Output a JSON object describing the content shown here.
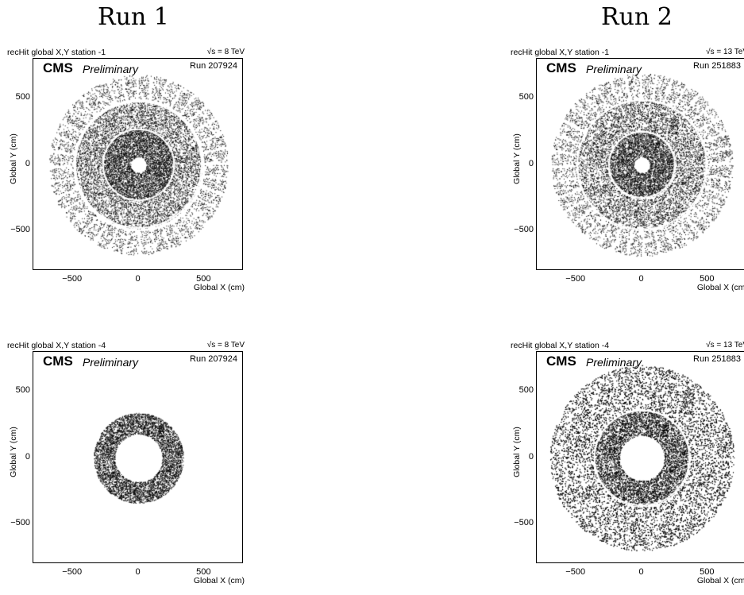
{
  "run_titles": [
    "Run 1",
    "Run 2"
  ],
  "cms_label": "CMS",
  "preliminary_label": "Preliminary",
  "chart_data": [
    {
      "type": "scatter",
      "title": "recHit global X,Y station -1",
      "energy": "√s = 8 TeV",
      "run": "Run 207924",
      "xlabel": "Global X (cm)",
      "ylabel": "Global Y (cm)",
      "xlim": [
        -800,
        800
      ],
      "ylim": [
        -800,
        800
      ],
      "xticks": [
        -500,
        0,
        500
      ],
      "yticks": [
        500,
        0,
        -500
      ],
      "tick_labels": [
        "−500",
        "0",
        "500"
      ],
      "rings": [
        {
          "r_inner": 60,
          "r_outer": 270,
          "fill": "dense"
        },
        {
          "r_inner": 270,
          "r_outer": 480,
          "fill": "medium"
        },
        {
          "r_inner": 500,
          "r_outer": 680,
          "fill": "sparse",
          "segmented": true
        }
      ]
    },
    {
      "type": "scatter",
      "title": "recHit global X,Y station -1",
      "energy": "√s = 13 TeV",
      "run": "Run 251883",
      "xlabel": "Global X (cm)",
      "ylabel": "Global Y (cm)",
      "xlim": [
        -800,
        800
      ],
      "ylim": [
        -800,
        800
      ],
      "xticks": [
        -500,
        0,
        500
      ],
      "yticks": [
        500,
        0,
        -500
      ],
      "tick_labels": [
        "−500",
        "0",
        "500"
      ],
      "rings": [
        {
          "r_inner": 60,
          "r_outer": 250,
          "fill": "dense"
        },
        {
          "r_inner": 260,
          "r_outer": 490,
          "fill": "medium"
        },
        {
          "r_inner": 500,
          "r_outer": 690,
          "fill": "sparse",
          "segmented": true
        }
      ]
    },
    {
      "type": "scatter",
      "title": "recHit global X,Y station -4",
      "energy": "√s = 8 TeV",
      "run": "Run 207924",
      "xlabel": "Global X (cm)",
      "ylabel": "Global Y (cm)",
      "xlim": [
        -800,
        800
      ],
      "ylim": [
        -800,
        800
      ],
      "xticks": [
        -500,
        0,
        500
      ],
      "yticks": [
        500,
        0,
        -500
      ],
      "tick_labels": [
        "−500",
        "0",
        "500"
      ],
      "rings": [
        {
          "r_inner": 180,
          "r_outer": 340,
          "fill": "dense"
        }
      ]
    },
    {
      "type": "scatter",
      "title": "recHit global X,Y station -4",
      "energy": "√s = 13 TeV",
      "run": "Run 251883",
      "xlabel": "Global X (cm)",
      "ylabel": "Global Y (cm)",
      "xlim": [
        -800,
        800
      ],
      "ylim": [
        -800,
        800
      ],
      "xticks": [
        -500,
        0,
        500
      ],
      "yticks": [
        500,
        0,
        -500
      ],
      "tick_labels": [
        "−500",
        "0",
        "500"
      ],
      "rings": [
        {
          "r_inner": 170,
          "r_outer": 360,
          "fill": "dense"
        },
        {
          "r_inner": 370,
          "r_outer": 700,
          "fill": "medium"
        }
      ]
    }
  ]
}
